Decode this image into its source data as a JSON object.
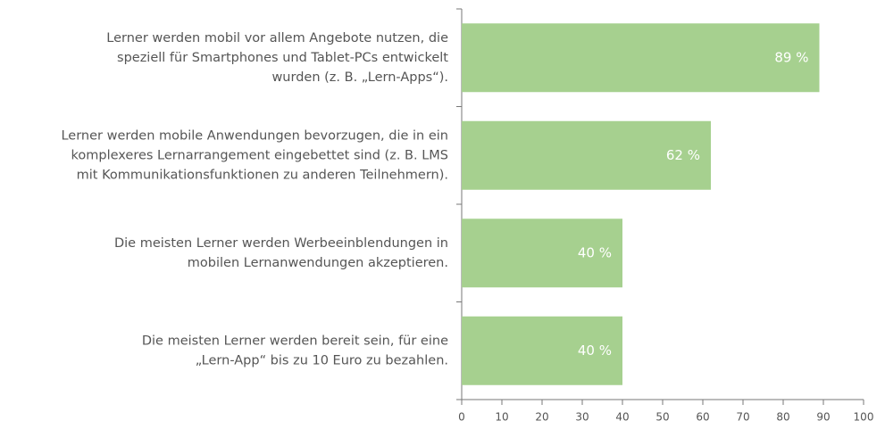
{
  "chart_data": {
    "type": "barh",
    "categories": [
      [
        "Lerner werden mobil vor allem Angebote nutzen, die",
        "speziell für Smartphones und Tablet-PCs entwickelt",
        "wurden (z. B. „Lern-Apps“)."
      ],
      [
        "Lerner werden mobile Anwendungen bevorzugen, die in ein",
        "komplexeres Lernarrangement eingebettet sind (z. B. LMS",
        "mit Kommunikationsfunktionen zu anderen Teilnehmern)."
      ],
      [
        "Die meisten Lerner werden Werbeeinblendungen in",
        "mobilen Lernanwendungen akzeptieren."
      ],
      [
        "Die meisten Lerner werden bereit sein, für eine",
        "„Lern-App“ bis zu 10 Euro zu bezahlen."
      ]
    ],
    "values": [
      89,
      62,
      40,
      40
    ],
    "value_labels": [
      "89 %",
      "62 %",
      "40 %",
      "40 %"
    ],
    "color": "#a6d08f",
    "xlim": [
      0,
      100
    ],
    "xticks": [
      0,
      10,
      20,
      30,
      40,
      50,
      60,
      70,
      80,
      90,
      100
    ]
  }
}
